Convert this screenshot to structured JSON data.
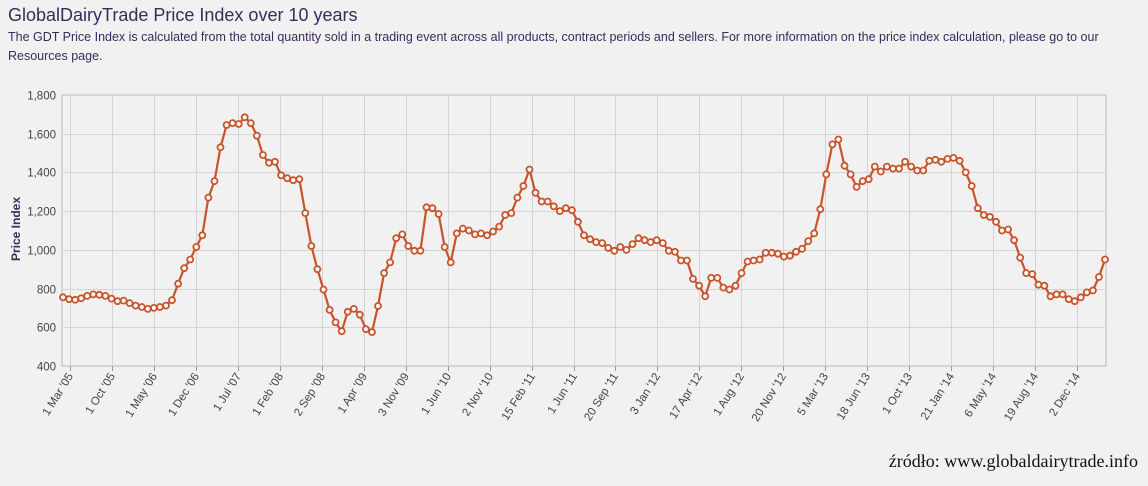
{
  "header": {
    "title": "GlobalDairyTrade Price Index over 10 years",
    "subtitle": "The GDT Price Index is calculated from the total quantity sold in a trading event across all products, contract periods and sellers. For more information on the price index calculation, please go to our Resources page."
  },
  "source": "źródło: www.globaldairytrade.info",
  "colors": {
    "line": "#c9532b",
    "marker_fill": "#ffffff",
    "grid": "#d4d4d4",
    "axis_text": "#444444",
    "ylabel": "#3b2a5c"
  },
  "chart_data": {
    "type": "line",
    "ylabel": "Price Index",
    "xlabel": "",
    "ylim": [
      400,
      1800
    ],
    "yticks": [
      400,
      600,
      800,
      1000,
      1200,
      1400,
      1600,
      1800
    ],
    "grid": true,
    "x_tick_labels": [
      "1 Mar '05",
      "1 Oct '05",
      "1 May '06",
      "1 Dec '06",
      "1 Jul '07",
      "1 Feb '08",
      "2 Sep '08",
      "1 Apr '09",
      "3 Nov '09",
      "1 Jun '10",
      "2 Nov '10",
      "15 Feb '11",
      "1 Jun '11",
      "20 Sep '11",
      "3 Jan '12",
      "17 Apr '12",
      "1 Aug '12",
      "20 Nov '12",
      "5 Mar '13",
      "18 Jun '13",
      "1 Oct '13",
      "21 Jan '14",
      "6 May '14",
      "19 Aug '14",
      "2 Dec '14"
    ],
    "series": [
      {
        "values": [
          755,
          745,
          742,
          750,
          762,
          770,
          768,
          762,
          748,
          735,
          738,
          725,
          712,
          705,
          695,
          700,
          705,
          712,
          740,
          825,
          905,
          950,
          1015,
          1075,
          1270,
          1355,
          1530,
          1645,
          1655,
          1650,
          1685,
          1655,
          1590,
          1490,
          1450,
          1455,
          1385,
          1370,
          1360,
          1365,
          1190,
          1020,
          900,
          795,
          690,
          625,
          580,
          680,
          695,
          665,
          590,
          575,
          710,
          880,
          935,
          1060,
          1080,
          1020,
          995,
          995,
          1220,
          1215,
          1185,
          1015,
          935,
          1085,
          1110,
          1100,
          1080,
          1085,
          1075,
          1095,
          1120,
          1180,
          1190,
          1270,
          1330,
          1415,
          1295,
          1250,
          1250,
          1225,
          1200,
          1215,
          1205,
          1145,
          1075,
          1055,
          1040,
          1035,
          1010,
          995,
          1015,
          1000,
          1030,
          1060,
          1050,
          1040,
          1050,
          1035,
          995,
          990,
          945,
          945,
          850,
          815,
          760,
          855,
          855,
          805,
          795,
          815,
          880,
          940,
          945,
          950,
          985,
          985,
          980,
          965,
          970,
          990,
          1005,
          1045,
          1085,
          1210,
          1390,
          1545,
          1570,
          1435,
          1390,
          1325,
          1355,
          1365,
          1430,
          1405,
          1430,
          1420,
          1420,
          1455,
          1430,
          1410,
          1410,
          1460,
          1465,
          1455,
          1470,
          1475,
          1460,
          1400,
          1330,
          1215,
          1180,
          1170,
          1145,
          1100,
          1105,
          1050,
          960,
          880,
          875,
          820,
          815,
          760,
          770,
          770,
          745,
          735,
          755,
          780,
          790,
          860,
          950
        ]
      }
    ]
  }
}
